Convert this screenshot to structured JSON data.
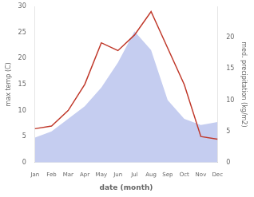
{
  "chart_data": {
    "type": "line",
    "xlabel": "date (month)",
    "ylabel": "max temp (C)",
    "y2label": "med. precipitation (kg/m2)",
    "categories": [
      "Jan",
      "Feb",
      "Mar",
      "Apr",
      "May",
      "Jun",
      "Jul",
      "Aug",
      "Sep",
      "Oct",
      "Nov",
      "Dec"
    ],
    "series": [
      {
        "type": "area",
        "color": "#c5cdf0",
        "axis": "y2",
        "values": [
          4.0,
          5.0,
          7.0,
          9.0,
          12.0,
          16.0,
          21.0,
          18.0,
          10.0,
          7.0,
          6.0,
          6.5
        ]
      },
      {
        "type": "line",
        "color": "#c0392b",
        "values": [
          6.5,
          7.0,
          10.0,
          15.0,
          23.0,
          21.5,
          24.5,
          29.0,
          22.0,
          15.0,
          5.0,
          4.5
        ]
      }
    ],
    "ylim": [
      0,
      30
    ],
    "yticks": [
      0,
      5,
      10,
      15,
      20,
      25,
      30
    ],
    "y2lim": [
      0,
      25
    ],
    "y2ticks": [
      0,
      5,
      10,
      15,
      20
    ],
    "grid": false
  }
}
